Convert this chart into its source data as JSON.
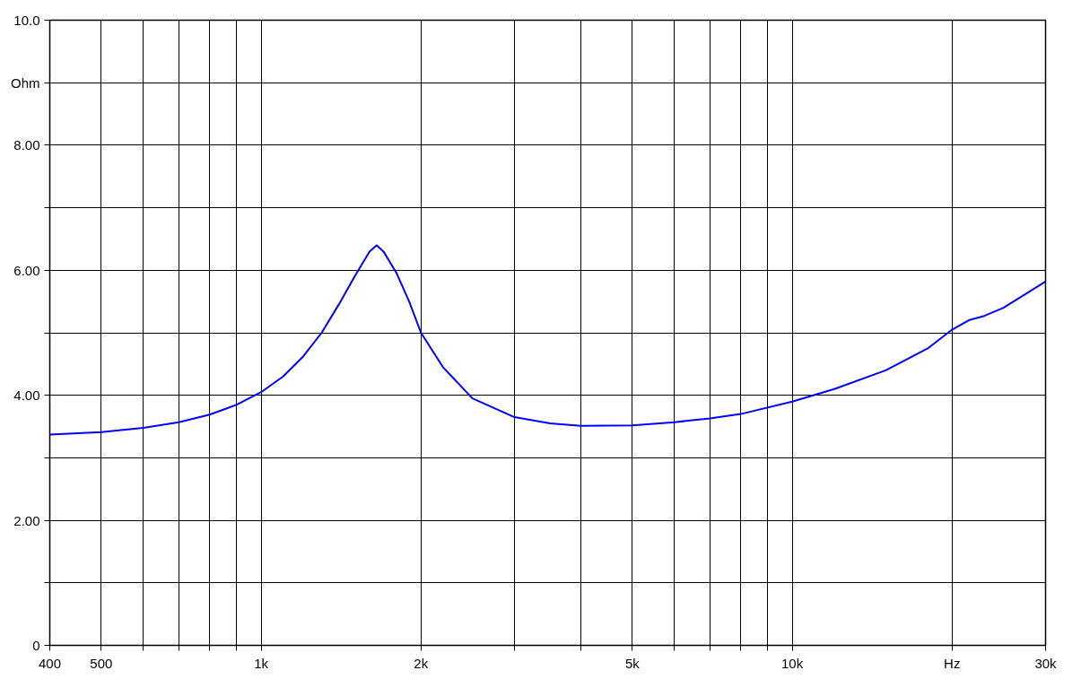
{
  "chart_data": {
    "type": "line",
    "log": "x",
    "x": [
      400,
      500,
      600,
      700,
      800,
      900,
      1000,
      1100,
      1200,
      1300,
      1400,
      1500,
      1600,
      1650,
      1700,
      1800,
      1900,
      2000,
      2200,
      2500,
      3000,
      3500,
      4000,
      5000,
      6000,
      7000,
      8000,
      10000,
      12000,
      15000,
      18000,
      20000,
      21500,
      23000,
      25000,
      30000
    ],
    "series": [
      {
        "color": "#0000ff",
        "values": [
          3.37,
          3.41,
          3.48,
          3.57,
          3.69,
          3.85,
          4.05,
          4.3,
          4.62,
          5.0,
          5.45,
          5.9,
          6.3,
          6.4,
          6.3,
          5.95,
          5.5,
          5.0,
          4.45,
          3.95,
          3.65,
          3.55,
          3.51,
          3.52,
          3.57,
          3.63,
          3.7,
          3.9,
          4.1,
          4.4,
          4.75,
          5.05,
          5.2,
          5.27,
          5.4,
          5.82
        ]
      }
    ],
    "xlim": [
      400,
      30000
    ],
    "xticks": [
      400,
      500,
      {
        "value": 600,
        "label": null
      },
      {
        "value": 700,
        "label": null
      },
      {
        "value": 800,
        "label": null
      },
      {
        "value": 900,
        "label": null
      },
      {
        "value": 1000,
        "label": "1k"
      },
      {
        "value": 2000,
        "label": "2k"
      },
      {
        "value": 3000,
        "label": null
      },
      {
        "value": 4000,
        "label": null
      },
      {
        "value": 5000,
        "label": "5k"
      },
      {
        "value": 6000,
        "label": null
      },
      {
        "value": 7000,
        "label": null
      },
      {
        "value": 8000,
        "label": null
      },
      {
        "value": 9000,
        "label": null
      },
      {
        "value": 10000,
        "label": "10k"
      },
      {
        "value": 20000,
        "label": "Hz"
      },
      {
        "value": 30000,
        "label": "30k"
      }
    ],
    "ylim": [
      0,
      10
    ],
    "yticks": [
      0,
      {
        "value": 1,
        "label": null
      },
      {
        "value": 2,
        "label": "2.00"
      },
      {
        "value": 3,
        "label": null
      },
      {
        "value": 4,
        "label": "4.00"
      },
      {
        "value": 5,
        "label": null
      },
      {
        "value": 6,
        "label": "6.00"
      },
      {
        "value": 7,
        "label": null
      },
      {
        "value": 8,
        "label": "8.00"
      },
      {
        "value": 9,
        "label": "Ohm"
      },
      {
        "value": 10,
        "label": "10.0"
      }
    ],
    "grid": true
  }
}
